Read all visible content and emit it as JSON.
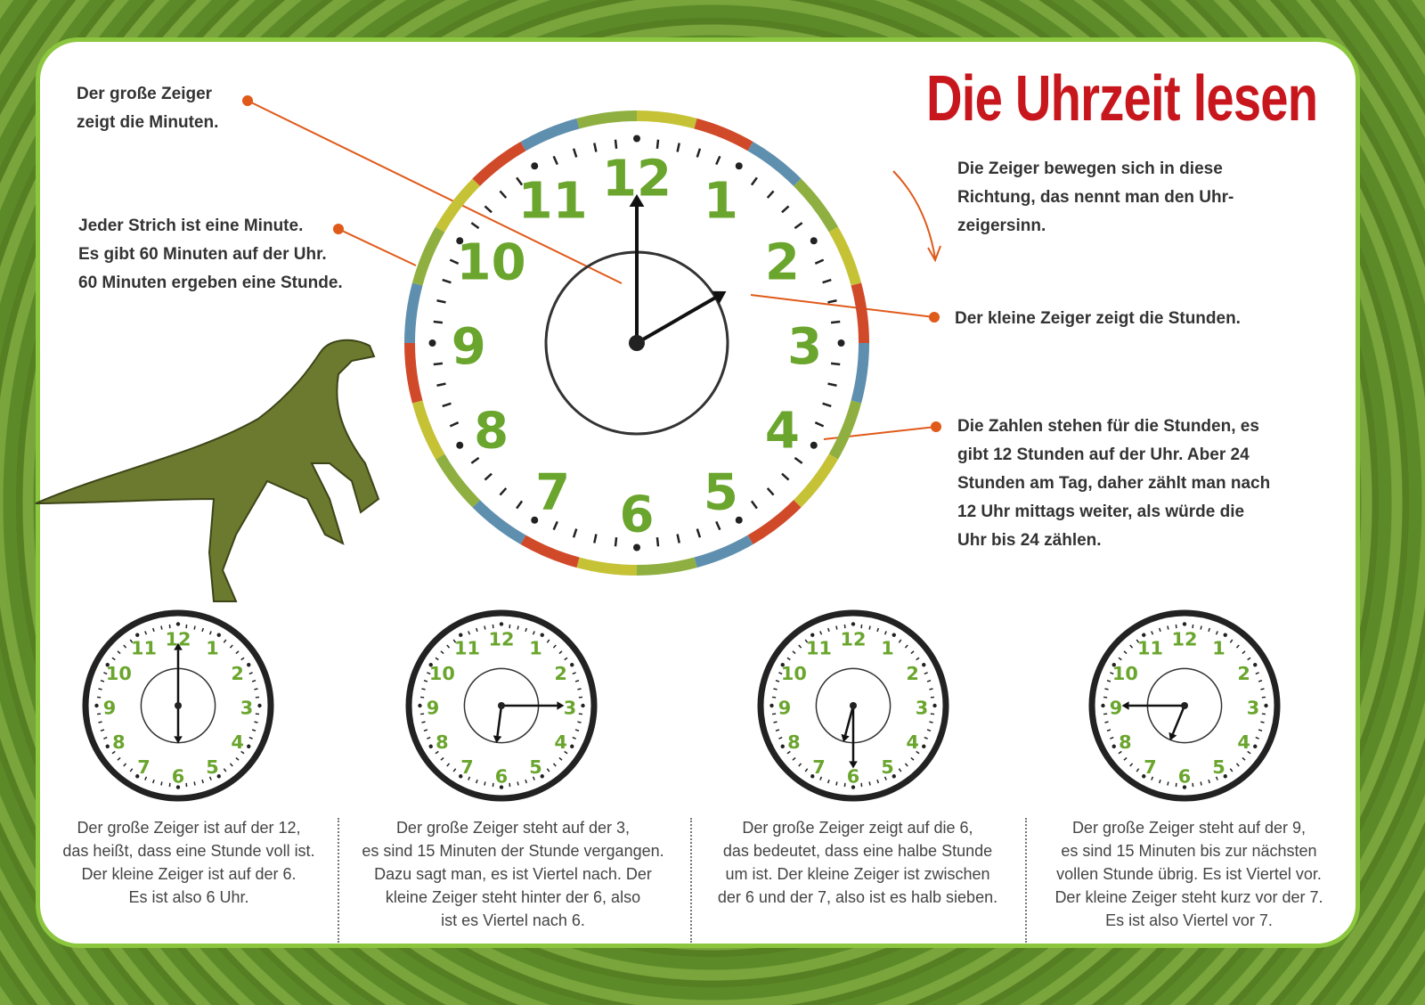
{
  "title": "Die Uhrzeit lesen",
  "notes": {
    "minute_hand": [
      "Der große Zeiger",
      "zeigt die Minuten."
    ],
    "ticks": [
      "Jeder Strich ist eine Minute.",
      "Es gibt 60 Minuten auf der Uhr.",
      "60 Minuten ergeben eine Stunde."
    ],
    "direction": [
      "Die Zeiger bewegen sich in diese",
      "Richtung, das nennt man den Uhr-",
      "zeigersinn."
    ],
    "hour_hand": [
      "Der kleine Zeiger zeigt die Stunden."
    ],
    "numbers": [
      "Die Zahlen stehen für die Stunden, es",
      "gibt 12 Stunden auf der Uhr. Aber 24",
      "Stunden am Tag, daher zählt man nach",
      "12 Uhr mittags weiter, als würde die",
      "Uhr bis 24 zählen."
    ]
  },
  "colors": {
    "accent": "#c8161d",
    "numbers": "#6aa52d",
    "arrow": "#e05a1a",
    "ring": [
      "#c6c236",
      "#d04a2a",
      "#5f8fae",
      "#8fb040"
    ]
  },
  "clock_numbers": [
    "12",
    "1",
    "2",
    "3",
    "4",
    "5",
    "6",
    "7",
    "8",
    "9",
    "10",
    "11"
  ],
  "main_clock": {
    "hour": 2,
    "minute": 0
  },
  "examples": [
    {
      "hour": 6,
      "minute": 0,
      "text": [
        "Der große Zeiger ist auf der 12,",
        "das heißt, dass eine Stunde voll ist.",
        "Der kleine Zeiger ist auf der 6.",
        "Es ist also 6 Uhr."
      ]
    },
    {
      "hour": 6,
      "minute": 15,
      "text": [
        "Der große Zeiger steht auf der 3,",
        "es sind 15 Minuten der Stunde vergangen.",
        "Dazu sagt man, es ist Viertel nach. Der",
        "kleine Zeiger steht hinter der 6, also",
        "ist es Viertel nach 6."
      ]
    },
    {
      "hour": 6,
      "minute": 30,
      "text": [
        "Der große Zeiger zeigt auf die 6,",
        "das bedeutet, dass eine halbe Stunde",
        "um ist. Der kleine Zeiger ist zwischen",
        "der 6 und der 7, also ist es halb sieben."
      ]
    },
    {
      "hour": 6,
      "minute": 45,
      "text": [
        "Der große Zeiger steht auf der 9,",
        "es sind 15 Minuten bis zur nächsten",
        "vollen Stunde übrig. Es ist Viertel vor.",
        "Der kleine Zeiger steht kurz vor der 7.",
        "Es ist also Viertel vor 7."
      ]
    }
  ]
}
